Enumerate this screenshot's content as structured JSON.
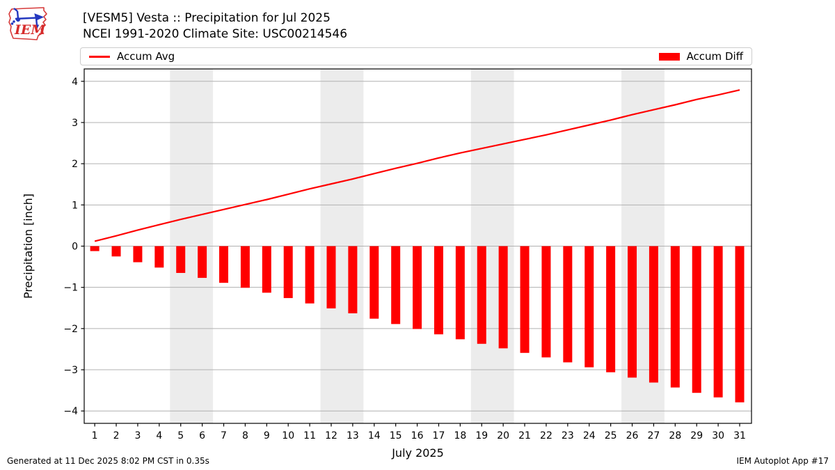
{
  "header": {
    "title_line1": "[VESM5] Vesta :: Precipitation for Jul 2025",
    "title_line2": "NCEI 1991-2020 Climate Site: USC00214546",
    "logo_text": "IEM"
  },
  "legend": {
    "items": [
      {
        "label": "Accum Avg",
        "swatch": "line",
        "color": "#ff0000"
      },
      {
        "label": "Accum Diff",
        "swatch": "patch",
        "color": "#ff0000"
      }
    ]
  },
  "footer": {
    "left": "Generated at 11 Dec 2025 8:02 PM CST in 0.35s",
    "right": "IEM Autoplot App #17"
  },
  "chart_data": {
    "type": "bar",
    "title": "[VESM5] Vesta :: Precipitation for Jul 2025 — NCEI 1991-2020 Climate Site: USC00214546",
    "xlabel": "July 2025",
    "ylabel": "Precipitation [inch]",
    "x": [
      1,
      2,
      3,
      4,
      5,
      6,
      7,
      8,
      9,
      10,
      11,
      12,
      13,
      14,
      15,
      16,
      17,
      18,
      19,
      20,
      21,
      22,
      23,
      24,
      25,
      26,
      27,
      28,
      29,
      30,
      31
    ],
    "series": [
      {
        "name": "Accum Avg",
        "type": "line",
        "color": "#ff0000",
        "values": [
          0.12,
          0.25,
          0.39,
          0.52,
          0.65,
          0.77,
          0.89,
          1.01,
          1.13,
          1.26,
          1.39,
          1.51,
          1.63,
          1.76,
          1.89,
          2.01,
          2.14,
          2.26,
          2.37,
          2.48,
          2.59,
          2.7,
          2.82,
          2.94,
          3.06,
          3.19,
          3.31,
          3.43,
          3.56,
          3.67,
          3.79
        ]
      },
      {
        "name": "Accum Diff",
        "type": "bar",
        "color": "#ff0000",
        "values": [
          -0.12,
          -0.25,
          -0.39,
          -0.52,
          -0.65,
          -0.77,
          -0.89,
          -1.01,
          -1.13,
          -1.26,
          -1.39,
          -1.51,
          -1.63,
          -1.76,
          -1.89,
          -2.01,
          -2.14,
          -2.26,
          -2.37,
          -2.48,
          -2.59,
          -2.7,
          -2.82,
          -2.94,
          -3.06,
          -3.19,
          -3.31,
          -3.43,
          -3.56,
          -3.67,
          -3.79
        ]
      }
    ],
    "xticks": [
      1,
      2,
      3,
      4,
      5,
      6,
      7,
      8,
      9,
      10,
      11,
      12,
      13,
      14,
      15,
      16,
      17,
      18,
      19,
      20,
      21,
      22,
      23,
      24,
      25,
      26,
      27,
      28,
      29,
      30,
      31
    ],
    "yticks": [
      -4,
      -3,
      -2,
      -1,
      0,
      1,
      2,
      3,
      4
    ],
    "xlim": [
      0.51,
      31.55
    ],
    "ylim": [
      -4.3,
      4.3
    ],
    "grid": true,
    "legend_position": "top",
    "gridline_color": "#b0b0b0",
    "weekend_bands": [
      [
        4.5,
        6.5
      ],
      [
        11.5,
        13.5
      ],
      [
        18.5,
        20.5
      ],
      [
        25.5,
        27.5
      ]
    ],
    "band_color": "#ececec",
    "spine_color": "#000000",
    "background": "#ffffff"
  }
}
